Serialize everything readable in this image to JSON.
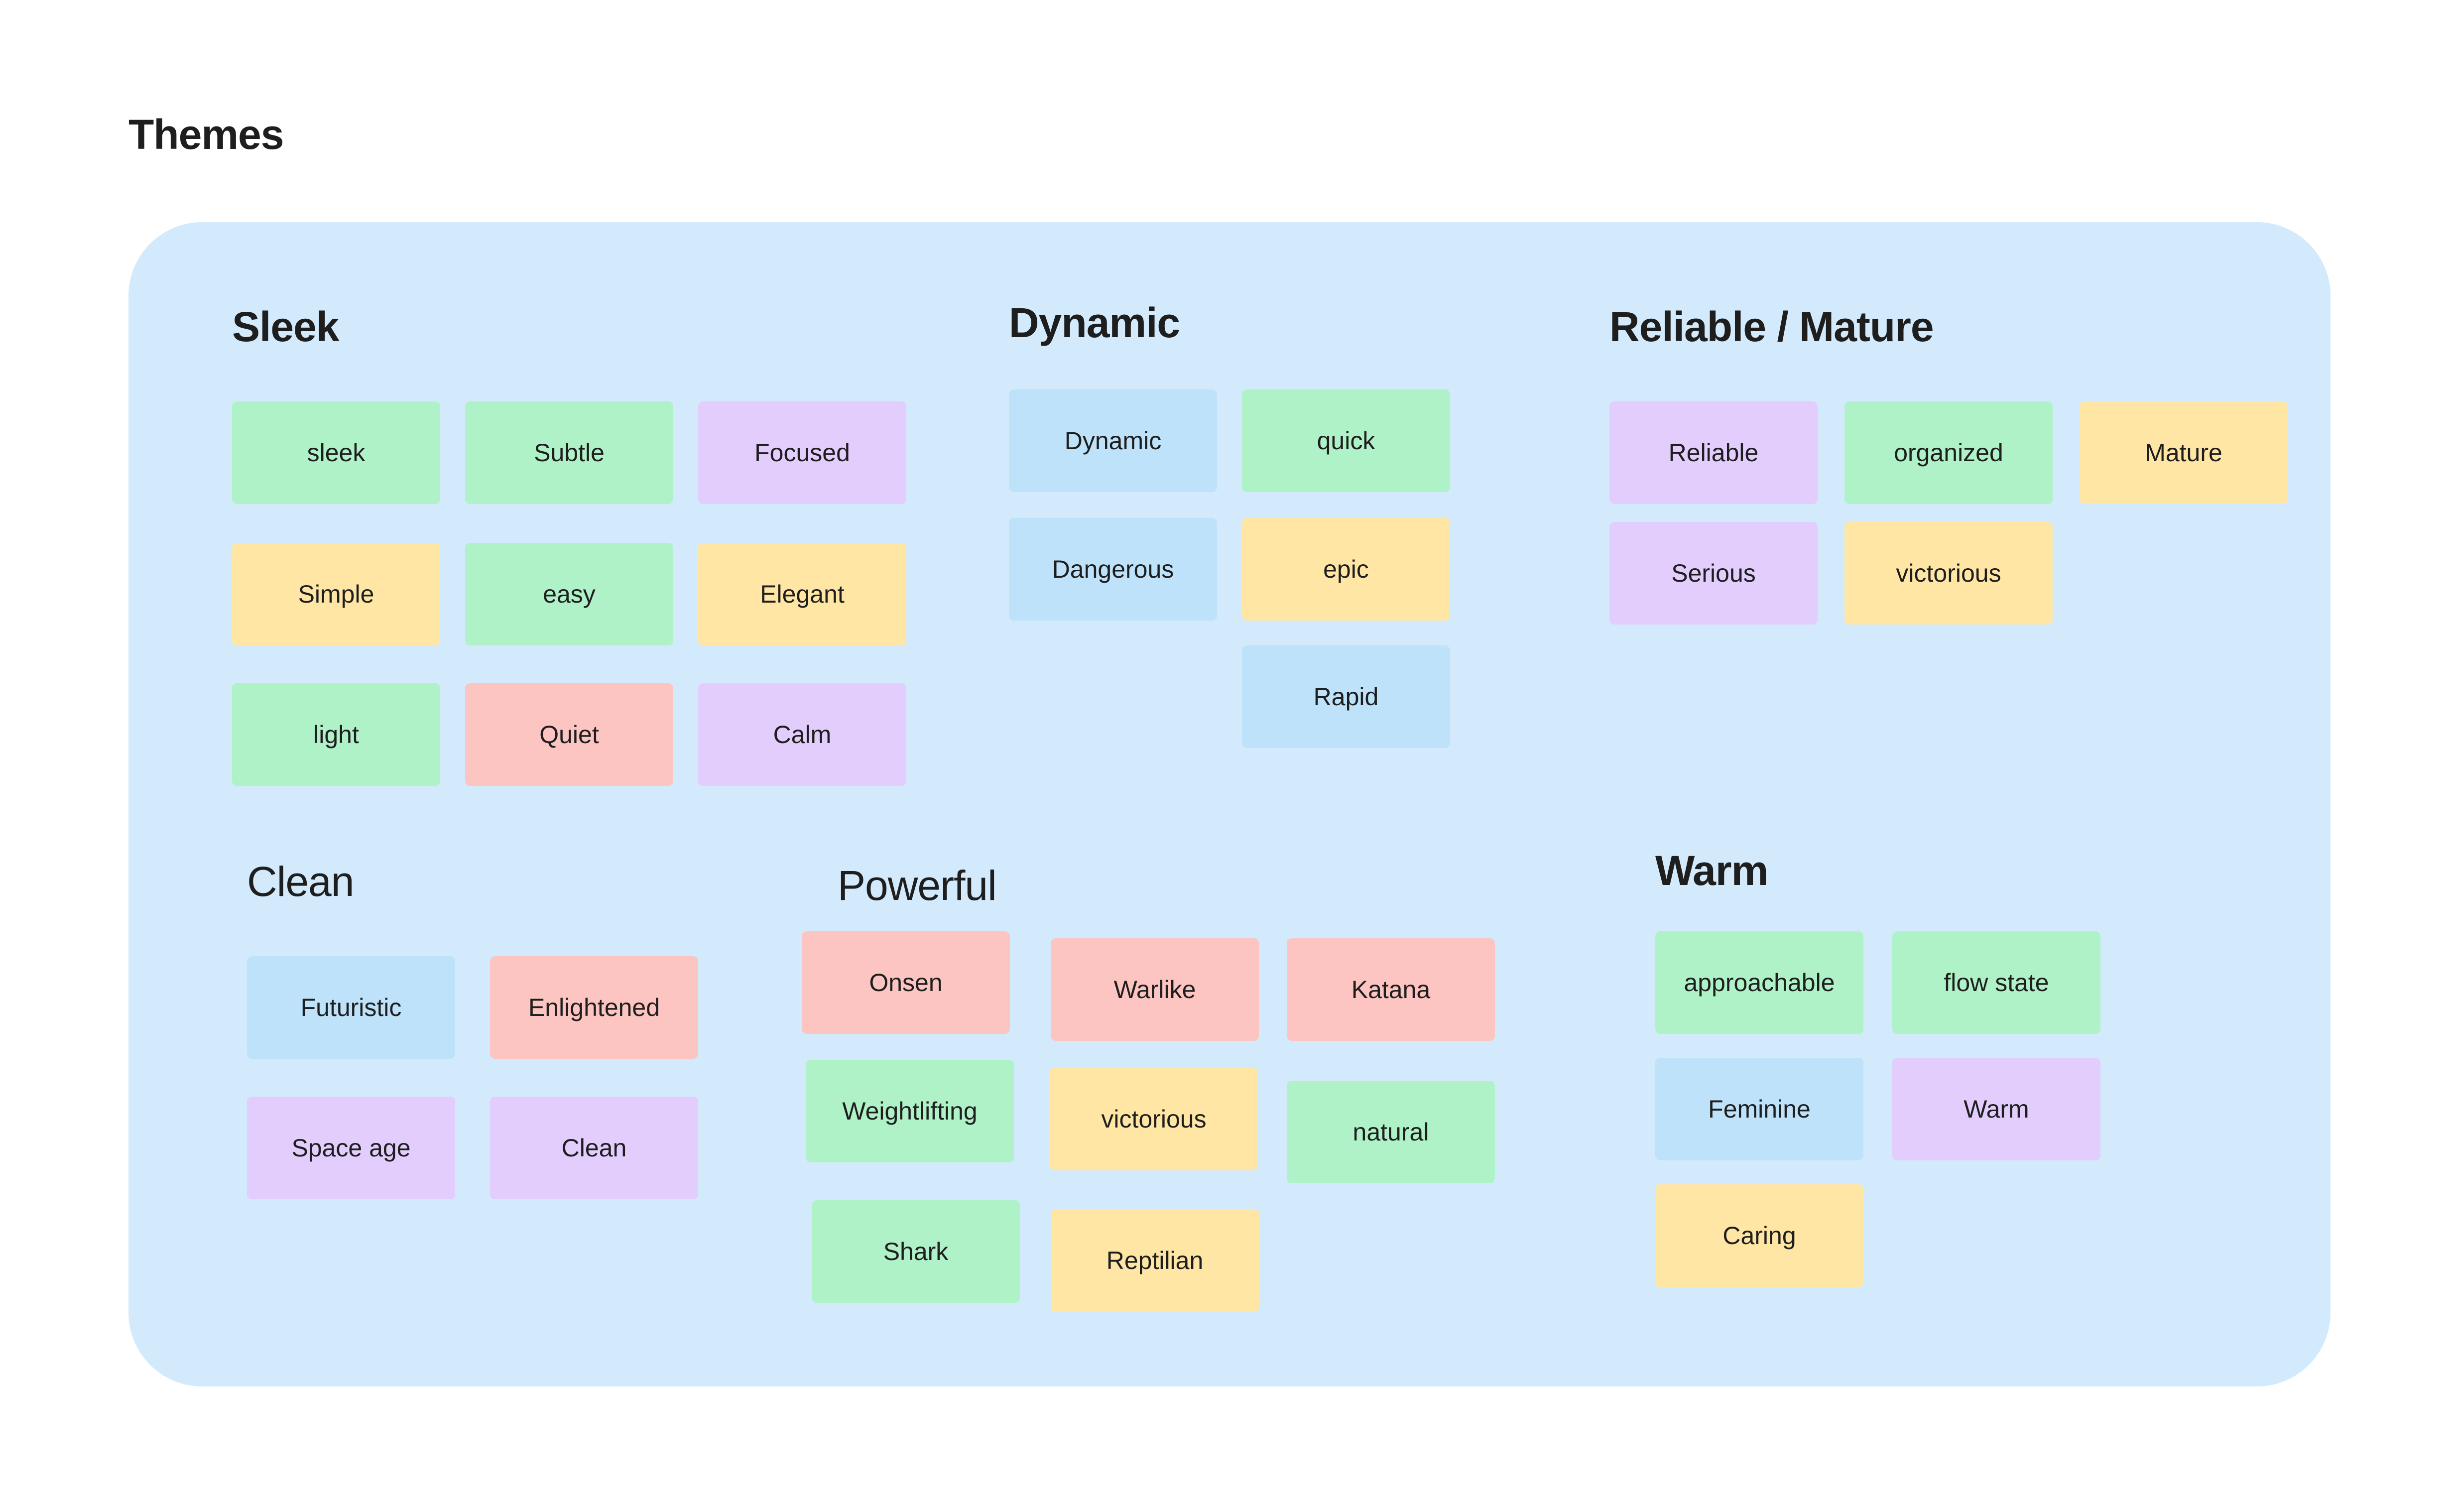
{
  "page": {
    "title": "Themes"
  },
  "colors": {
    "board": "#d2eafc",
    "green": "#b0f2c8",
    "purple": "#e2cdfc",
    "yellow": "#ffe6a4",
    "red": "#fdc5c1",
    "blue": "#bee2fa"
  },
  "groups": {
    "sleek": {
      "title": "Sleek",
      "notes": [
        {
          "label": "sleek",
          "color": "green"
        },
        {
          "label": "Subtle",
          "color": "green"
        },
        {
          "label": "Focused",
          "color": "purple"
        },
        {
          "label": "Simple",
          "color": "yellow"
        },
        {
          "label": "easy",
          "color": "green"
        },
        {
          "label": "Elegant",
          "color": "yellow"
        },
        {
          "label": "light",
          "color": "green"
        },
        {
          "label": "Quiet",
          "color": "red"
        },
        {
          "label": "Calm",
          "color": "purple"
        }
      ]
    },
    "dynamic": {
      "title": "Dynamic",
      "notes": [
        {
          "label": "Dynamic",
          "color": "blue"
        },
        {
          "label": "quick",
          "color": "green"
        },
        {
          "label": "Dangerous",
          "color": "blue"
        },
        {
          "label": "epic",
          "color": "yellow"
        },
        {
          "label": "Rapid",
          "color": "blue"
        }
      ]
    },
    "reliable": {
      "title": "Reliable / Mature",
      "notes": [
        {
          "label": "Reliable",
          "color": "purple"
        },
        {
          "label": "organized",
          "color": "green"
        },
        {
          "label": "Mature",
          "color": "yellow"
        },
        {
          "label": "Serious",
          "color": "purple"
        },
        {
          "label": "victorious",
          "color": "yellow"
        }
      ]
    },
    "clean": {
      "title": "Clean",
      "notes": [
        {
          "label": "Futuristic",
          "color": "blue"
        },
        {
          "label": "Enlightened",
          "color": "red"
        },
        {
          "label": "Space age",
          "color": "purple"
        },
        {
          "label": "Clean",
          "color": "purple"
        }
      ]
    },
    "powerful": {
      "title": "Powerful",
      "notes": [
        {
          "label": "Onsen",
          "color": "red"
        },
        {
          "label": "Warlike",
          "color": "red"
        },
        {
          "label": "Katana",
          "color": "red"
        },
        {
          "label": "Weightlifting",
          "color": "green"
        },
        {
          "label": "victorious",
          "color": "yellow"
        },
        {
          "label": "natural",
          "color": "green"
        },
        {
          "label": "Shark",
          "color": "green"
        },
        {
          "label": "Reptilian",
          "color": "yellow"
        }
      ]
    },
    "warm": {
      "title": "Warm",
      "notes": [
        {
          "label": "approachable",
          "color": "green"
        },
        {
          "label": "flow state",
          "color": "green"
        },
        {
          "label": "Feminine",
          "color": "blue"
        },
        {
          "label": "Warm",
          "color": "purple"
        },
        {
          "label": "Caring",
          "color": "yellow"
        }
      ]
    }
  }
}
